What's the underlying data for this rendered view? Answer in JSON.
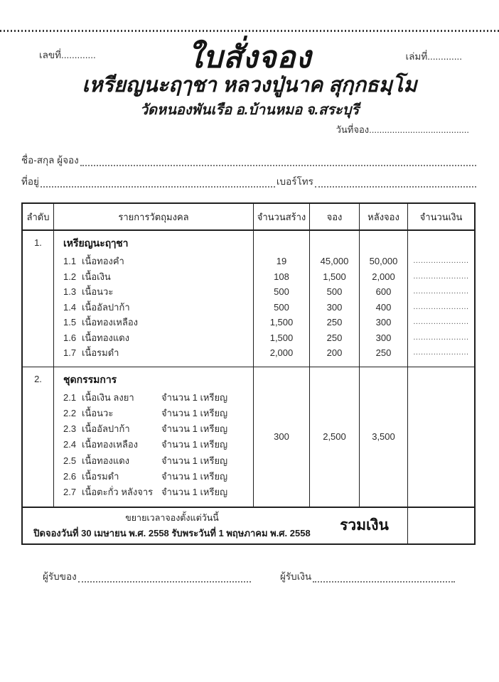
{
  "page": {
    "number_label": "เลขที่.............",
    "volume_label": "เล่มที่.............",
    "title": "ใบสั่งจอง",
    "subtitle": "เหรียญนะฤๅชา หลวงปู่นาค สุกฺกธมฺโม",
    "temple": "วัดหนองพันเรือ อ.บ้านหมอ จ.สระบุรี",
    "booking_date_label": "วันที่จอง.......................................",
    "name_label": "ชื่อ-สกุล ผู้จอง",
    "address_label": "ที่อยู่",
    "phone_label": "เบอร์โทร"
  },
  "table": {
    "headers": [
      "ลำดับ",
      "รายการวัตถุมงคล",
      "จำนวนสร้าง",
      "จอง",
      "หลังจอง",
      "จำนวนเงิน"
    ],
    "sections": [
      {
        "no": "1.",
        "title": "เหรียญนะฤๅชา",
        "items": [
          {
            "idx": "1.1",
            "name": "เนื้อทองคำ",
            "made": "19",
            "book": "45,000",
            "after": "50,000",
            "amount": "......................"
          },
          {
            "idx": "1.2",
            "name": "เนื้อเงิน",
            "made": "108",
            "book": "1,500",
            "after": "2,000",
            "amount": "......................"
          },
          {
            "idx": "1.3",
            "name": "เนื้อนวะ",
            "made": "500",
            "book": "500",
            "after": "600",
            "amount": "......................"
          },
          {
            "idx": "1.4",
            "name": "เนื้ออัลปาก้า",
            "made": "500",
            "book": "300",
            "after": "400",
            "amount": "......................"
          },
          {
            "idx": "1.5",
            "name": "เนื้อทองเหลือง",
            "made": "1,500",
            "book": "250",
            "after": "300",
            "amount": "......................"
          },
          {
            "idx": "1.6",
            "name": "เนื้อทองแดง",
            "made": "1,500",
            "book": "250",
            "after": "300",
            "amount": "......................"
          },
          {
            "idx": "1.7",
            "name": "เนื้อรมดำ",
            "made": "2,000",
            "book": "200",
            "after": "250",
            "amount": "......................"
          }
        ]
      },
      {
        "no": "2.",
        "title": "ชุดกรรมการ",
        "made": "300",
        "book": "2,500",
        "after": "3,500",
        "items": [
          {
            "idx": "2.1",
            "name": "เนื้อเงิน ลงยา",
            "qty": "จำนวน 1  เหรียญ"
          },
          {
            "idx": "2.2",
            "name": "เนื้อนวะ",
            "qty": "จำนวน 1  เหรียญ"
          },
          {
            "idx": "2.3",
            "name": "เนื้ออัลปาก้า",
            "qty": "จำนวน 1  เหรียญ"
          },
          {
            "idx": "2.4",
            "name": "เนื้อทองเหลือง",
            "qty": "จำนวน 1  เหรียญ"
          },
          {
            "idx": "2.5",
            "name": "เนื้อทองแดง",
            "qty": "จำนวน 1  เหรียญ"
          },
          {
            "idx": "2.6",
            "name": "เนื้อรมดำ",
            "qty": "จำนวน 1  เหรียญ"
          },
          {
            "idx": "2.7",
            "name": "เนื้อตะกั่ว หลังจาร",
            "qty": "จำนวน 1  เหรียญ"
          }
        ]
      }
    ],
    "footer": {
      "line1": "ขยายเวลาจองตั้งแต่วันนี้",
      "line2": "ปิดจองวันที่ 30 เมษายน พ.ศ. 2558 รับพระวันที่ 1 พฤษภาคม พ.ศ. 2558",
      "total_label": "รวมเงิน"
    }
  },
  "signatures": {
    "receiver_goods_label": "ผู้รับของ",
    "receiver_money_label": "ผู้รับเงิน"
  },
  "colors": {
    "ink": "#2b2b2b",
    "border": "#1f1f1f",
    "paper": "#ffffff"
  }
}
